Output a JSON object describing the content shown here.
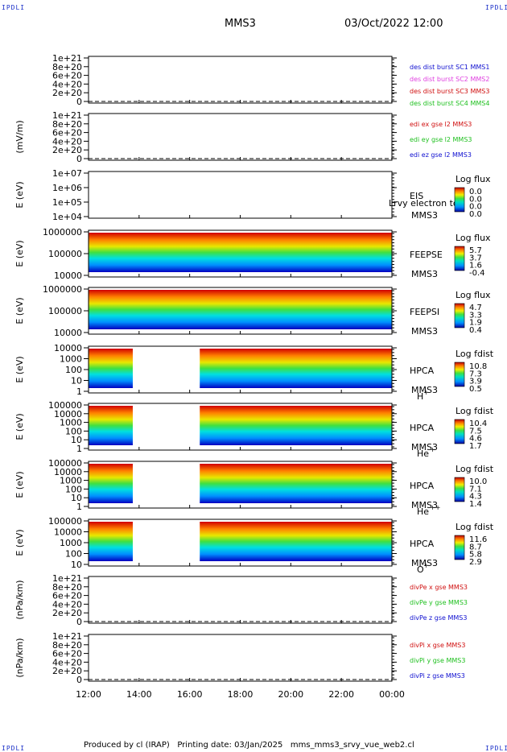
{
  "header": {
    "corner_label": "IPDLI",
    "spacecraft": "MMS3",
    "datetime": "03/Oct/2022 12:00"
  },
  "footer": {
    "text": "Produced by cl (IRAP)   Printing date: 03/Jan/2025   mms_mms3_srvy_vue_web2.cl"
  },
  "colors": {
    "red": "#d01010",
    "magenta": "#e040e0",
    "green": "#20c020",
    "blue": "#1010d0",
    "dark_blue": "#1020a0"
  },
  "chart_data": {
    "type": "heatmap",
    "x_axis": {
      "ticks": [
        "12:00",
        "14:00",
        "16:00",
        "18:00",
        "20:00",
        "22:00",
        "00:00"
      ],
      "range_hours": [
        12,
        24
      ]
    },
    "panels": [
      {
        "kind": "line",
        "ylabel": "",
        "yticks": [
          "1e+21",
          "8e+20",
          "6e+20",
          "4e+20",
          "2e+20",
          "0"
        ],
        "legend": [
          {
            "text": "des dist burst SC1 MMS1",
            "color": "#1010d0"
          },
          {
            "text": "des dist burst SC2 MMS2",
            "color": "#e040e0"
          },
          {
            "text": "des dist burst SC3 MMS3",
            "color": "#d01010"
          },
          {
            "text": "des dist burst SC4 MMS4",
            "color": "#20c020"
          }
        ]
      },
      {
        "kind": "line",
        "ylabel": "(mV/m)",
        "yticks": [
          "1e+21",
          "8e+20",
          "6e+20",
          "4e+20",
          "2e+20",
          "0"
        ],
        "legend": [
          {
            "text": "edi ex gse l2 MMS3",
            "color": "#d01010"
          },
          {
            "text": "edi ey gse l2 MMS3",
            "color": "#20c020"
          },
          {
            "text": "edi ez gse l2 MMS3",
            "color": "#1010d0"
          }
        ]
      },
      {
        "kind": "spec",
        "ylabel": "E (eV)",
        "yticks": [
          "1e+07",
          "1e+06",
          "1e+05",
          "1e+04"
        ],
        "label": "EIS",
        "sublabel": "MMS3",
        "extra": "Lrvy electron to",
        "cbar_title": "Log flux",
        "cbar_values": [
          "0.0",
          "0.0",
          "0.0",
          "0.0"
        ],
        "segments": []
      },
      {
        "kind": "spec",
        "ylabel": "E (eV)",
        "yticks": [
          "1000000",
          "100000",
          "10000"
        ],
        "label": "FEEPSE",
        "sublabel": "MMS3",
        "cbar_title": "Log flux",
        "cbar_values": [
          "5.7",
          "3.7",
          "1.6",
          "-0.4"
        ],
        "segments": [
          [
            12,
            24
          ]
        ]
      },
      {
        "kind": "spec",
        "ylabel": "E (eV)",
        "yticks": [
          "1000000",
          "100000",
          "10000"
        ],
        "label": "FEEPSI",
        "sublabel": "MMS3",
        "cbar_title": "Log flux",
        "cbar_values": [
          "4.7",
          "3.3",
          "1.9",
          "0.4"
        ],
        "segments": [
          [
            12,
            24
          ]
        ]
      },
      {
        "kind": "spec",
        "ylabel": "E (eV)",
        "yticks": [
          "10000",
          "1000",
          "100",
          "10",
          "1"
        ],
        "label": "HPCA",
        "sublabel": "MMS3",
        "species": "H",
        "charge": "+",
        "cbar_title": "Log fdist",
        "cbar_values": [
          "10.8",
          "7.3",
          "3.9",
          "0.5"
        ],
        "segments": [
          [
            12,
            13.75
          ],
          [
            16.4,
            24
          ]
        ]
      },
      {
        "kind": "spec",
        "ylabel": "E (eV)",
        "yticks": [
          "100000",
          "10000",
          "1000",
          "100",
          "10",
          "1"
        ],
        "label": "HPCA",
        "sublabel": "MMS3",
        "species": "He",
        "charge": "+",
        "cbar_title": "Log fdist",
        "cbar_values": [
          "10.4",
          "7.5",
          "4.6",
          "1.7"
        ],
        "segments": [
          [
            12,
            13.75
          ],
          [
            16.4,
            24
          ]
        ]
      },
      {
        "kind": "spec",
        "ylabel": "E (eV)",
        "yticks": [
          "100000",
          "10000",
          "1000",
          "100",
          "10",
          "1"
        ],
        "label": "HPCA",
        "sublabel": "MMS3",
        "species": "He",
        "charge": "++",
        "cbar_title": "Log fdist",
        "cbar_values": [
          "10.0",
          "7.1",
          "4.3",
          "1.4"
        ],
        "segments": [
          [
            12,
            13.75
          ],
          [
            16.4,
            24
          ]
        ]
      },
      {
        "kind": "spec",
        "ylabel": "E (eV)",
        "yticks": [
          "100000",
          "10000",
          "1000",
          "100",
          "10"
        ],
        "label": "HPCA",
        "sublabel": "MMS3",
        "species": "O",
        "charge": "+",
        "cbar_title": "Log fdist",
        "cbar_values": [
          "11.6",
          "8.7",
          "5.8",
          "2.9"
        ],
        "segments": [
          [
            12,
            13.75
          ],
          [
            16.4,
            24
          ]
        ]
      },
      {
        "kind": "line",
        "ylabel": "(nPa/km)",
        "yticks": [
          "1e+21",
          "8e+20",
          "6e+20",
          "4e+20",
          "2e+20",
          "0"
        ],
        "legend": [
          {
            "text": "divPe x gse MMS3",
            "color": "#d01010"
          },
          {
            "text": "divPe y gse MMS3",
            "color": "#20c020"
          },
          {
            "text": "divPe z gse MMS3",
            "color": "#1010d0"
          }
        ]
      },
      {
        "kind": "line",
        "ylabel": "(nPa/km)",
        "yticks": [
          "1e+21",
          "8e+20",
          "6e+20",
          "4e+20",
          "2e+20",
          "0"
        ],
        "legend": [
          {
            "text": "divPi x gse MMS3",
            "color": "#d01010"
          },
          {
            "text": "divPi y gse MMS3",
            "color": "#20c020"
          },
          {
            "text": "divPi z gse MMS3",
            "color": "#1010d0"
          }
        ]
      }
    ]
  }
}
